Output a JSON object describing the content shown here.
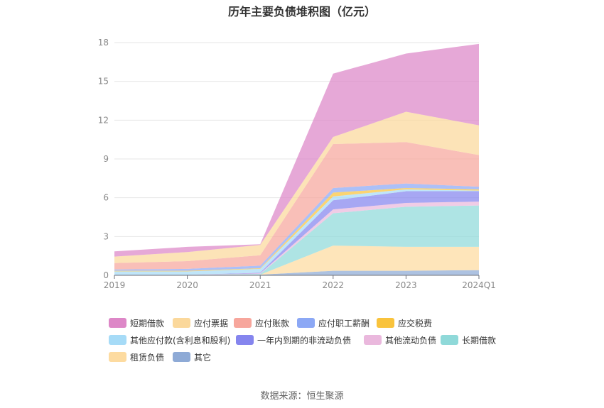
{
  "chart_data": {
    "type": "area",
    "stacked": true,
    "title": "历年主要负债堆积图（亿元）",
    "categories": [
      "2019",
      "2020",
      "2021",
      "2022",
      "2023",
      "2024Q1"
    ],
    "ylim": [
      0,
      18
    ],
    "yticks": [
      0,
      3,
      6,
      9,
      12,
      15,
      18
    ],
    "grid": true,
    "legend_position": "bottom",
    "series": [
      {
        "name": "其它",
        "color": "#8eaad6",
        "values": [
          0.05,
          0.05,
          0.05,
          0.35,
          0.35,
          0.4
        ]
      },
      {
        "name": "租赁负债",
        "color": "#fddba0",
        "values": [
          0.0,
          0.0,
          0.0,
          1.95,
          1.85,
          1.8
        ]
      },
      {
        "name": "长期借款",
        "color": "#8fd9d9",
        "values": [
          0.0,
          0.0,
          0.05,
          2.5,
          3.1,
          3.2
        ]
      },
      {
        "name": "其他流动负债",
        "color": "#eab8dd",
        "values": [
          0.0,
          0.0,
          0.05,
          0.3,
          0.3,
          0.3
        ]
      },
      {
        "name": "一年内到期的非流动负债",
        "color": "#8585ee",
        "values": [
          0.0,
          0.0,
          0.05,
          0.7,
          0.9,
          0.8
        ]
      },
      {
        "name": "其他应付款(含利息和股利)",
        "color": "#a6dbf7",
        "values": [
          0.25,
          0.25,
          0.3,
          0.3,
          0.15,
          0.05
        ]
      },
      {
        "name": "应交税费",
        "color": "#f9c33c",
        "values": [
          0.05,
          0.05,
          0.05,
          0.3,
          0.1,
          0.1
        ]
      },
      {
        "name": "应付职工薪酬",
        "color": "#8ca8f5",
        "values": [
          0.1,
          0.15,
          0.2,
          0.35,
          0.35,
          0.2
        ]
      },
      {
        "name": "应付账款",
        "color": "#f7a69c",
        "values": [
          0.5,
          0.6,
          0.8,
          3.4,
          3.2,
          2.45
        ]
      },
      {
        "name": "应付票据",
        "color": "#fbd89b",
        "values": [
          0.5,
          0.7,
          0.8,
          0.55,
          2.35,
          2.3
        ]
      },
      {
        "name": "短期借款",
        "color": "#dd87c7",
        "values": [
          0.4,
          0.4,
          0.05,
          4.9,
          4.5,
          6.3
        ]
      }
    ],
    "legend_order": [
      "短期借款",
      "应付票据",
      "应付账款",
      "应付职工薪酬",
      "应交税费",
      "其他应付款(含利息和股利)",
      "一年内到期的非流动负债",
      "其他流动负债",
      "长期借款",
      "租赁负债",
      "其它"
    ]
  },
  "source": "数据来源：恒生聚源"
}
